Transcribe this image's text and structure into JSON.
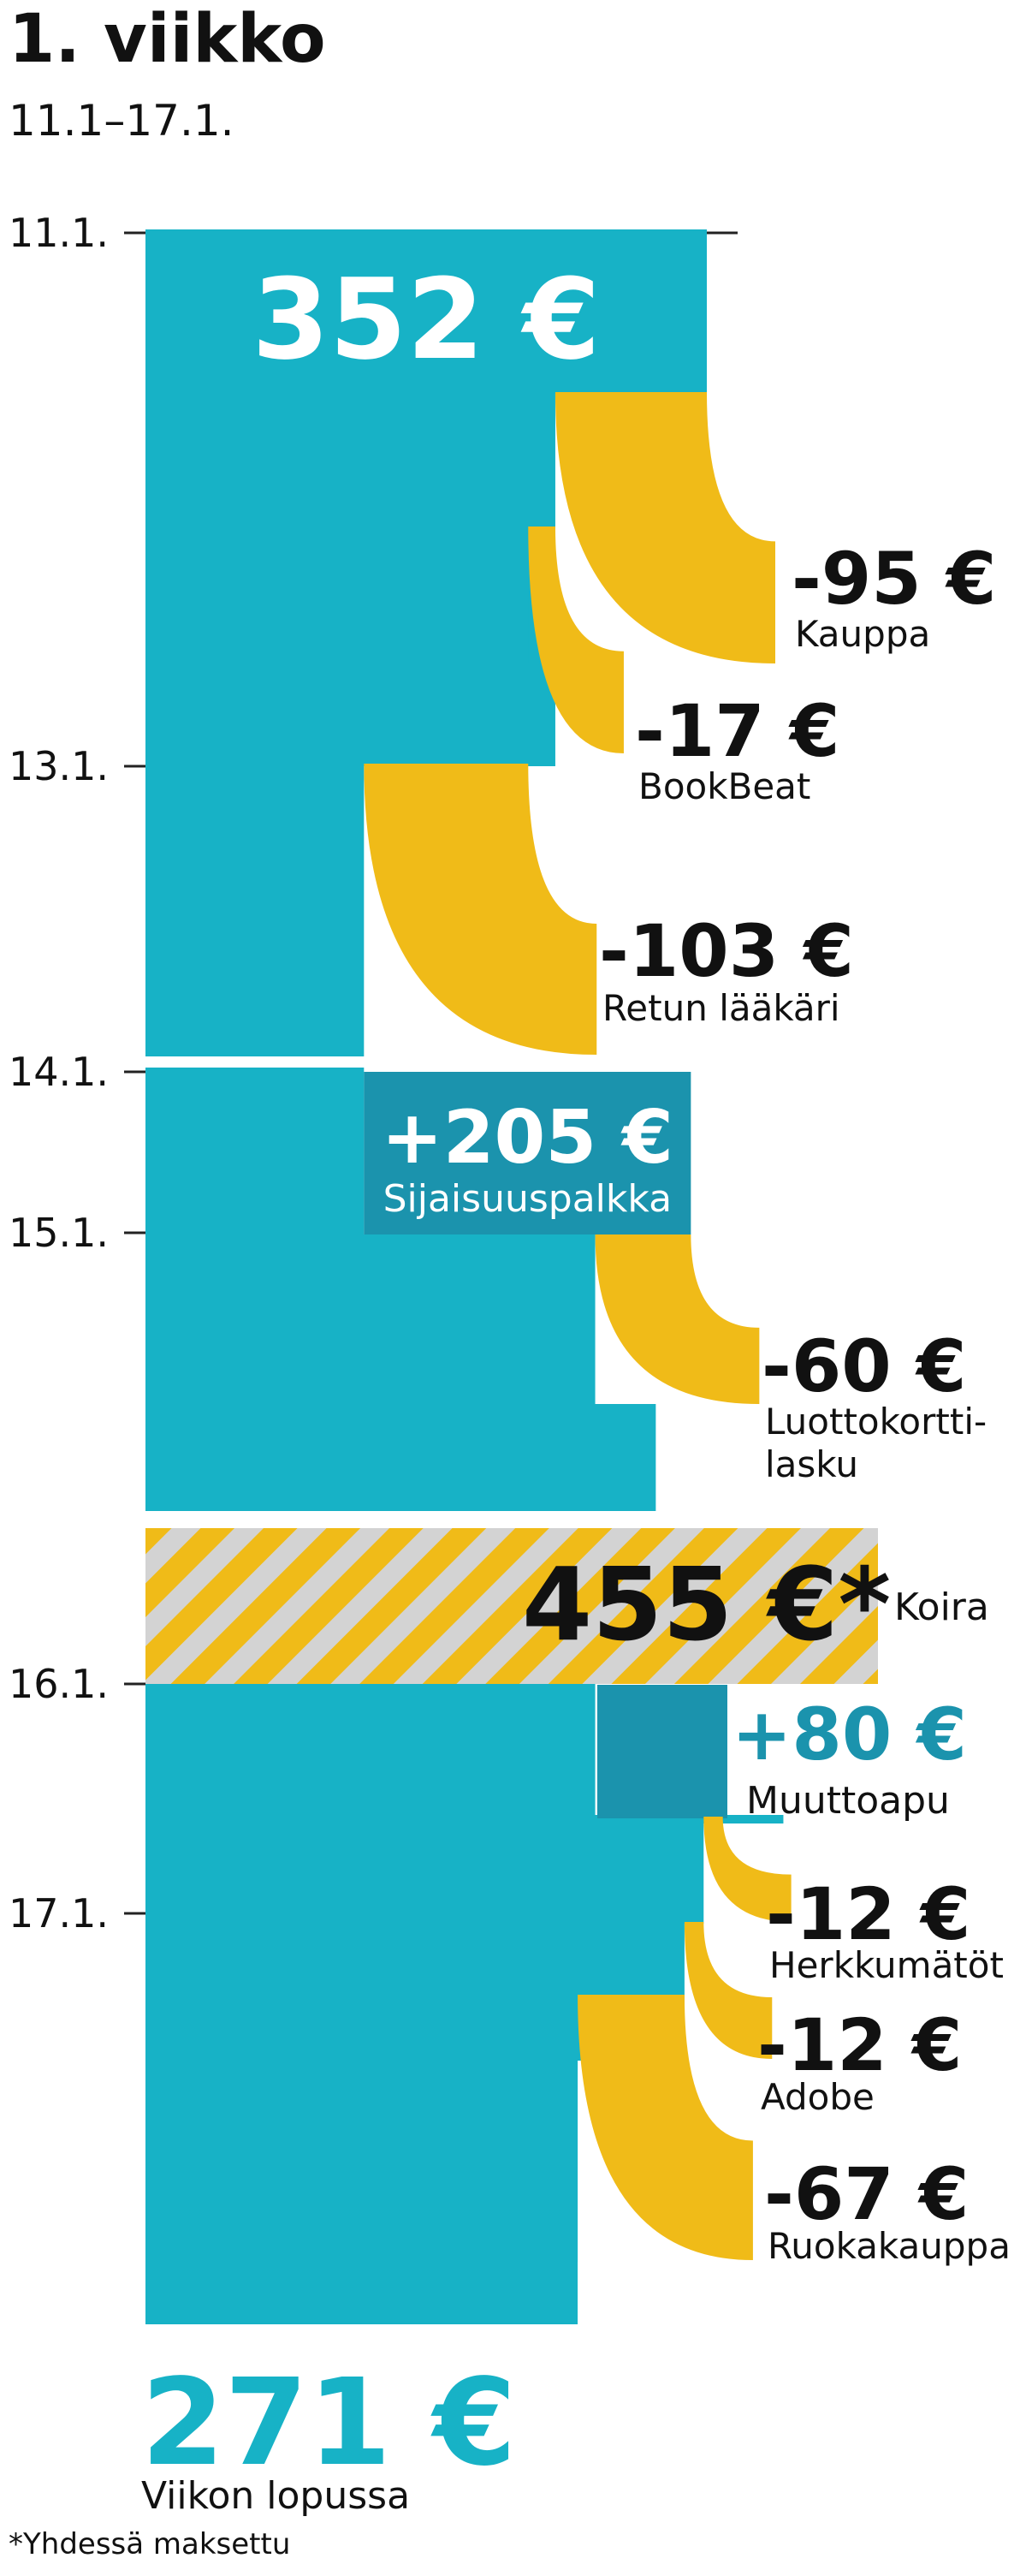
{
  "header": {
    "title": "1. viikko",
    "subtitle": "11.1–17.1."
  },
  "colors": {
    "balance": "#17b2c6",
    "expense": "#f0bb18",
    "income": "#1b93ad",
    "hatch_stripe": "#d3d3d3",
    "ticks": "#222222",
    "income_text": "#1b93ad"
  },
  "chart_data": {
    "type": "waterfall",
    "unit": "€",
    "start": {
      "value": 352,
      "label": "352 €"
    },
    "end": {
      "value": 271,
      "label": "271 €",
      "caption": "Viikon lopussa"
    },
    "date_ticks": [
      "11.1.",
      "13.1.",
      "14.1.",
      "15.1.",
      "16.1.",
      "17.1."
    ],
    "steps": [
      {
        "type": "expense",
        "amount": -95,
        "amount_label": "-95 €",
        "label": "Kauppa",
        "date": "12.1."
      },
      {
        "type": "expense",
        "amount": -17,
        "amount_label": "-17 €",
        "label": "BookBeat",
        "date": "12.1."
      },
      {
        "type": "expense",
        "amount": -103,
        "amount_label": "-103 €",
        "label": "Retun lääkäri",
        "date": "13.1."
      },
      {
        "type": "income",
        "amount": 205,
        "amount_label": "+205 €",
        "label": "Sijaisuuspalkka",
        "date": "14.1."
      },
      {
        "type": "expense",
        "amount": -60,
        "amount_label": "-60 €",
        "label": "Luottokortti-\nlasku",
        "date": "15.1."
      },
      {
        "type": "shared",
        "amount": 455,
        "amount_label": "455 €*",
        "label": "Koira",
        "date": "15.1."
      },
      {
        "type": "income",
        "amount": 80,
        "amount_label": "+80 €",
        "label": "Muuttoapu",
        "date": "16.1."
      },
      {
        "type": "expense",
        "amount": -12,
        "amount_label": "-12 €",
        "label": "Herkkumätöt",
        "date": "17.1."
      },
      {
        "type": "expense",
        "amount": -12,
        "amount_label": "-12 €",
        "label": "Adobe",
        "date": "17.1."
      },
      {
        "type": "expense",
        "amount": -67,
        "amount_label": "-67 €",
        "label": "Ruokakauppa",
        "date": "17.1."
      }
    ]
  },
  "footnote": "*Yhdessä maksettu"
}
